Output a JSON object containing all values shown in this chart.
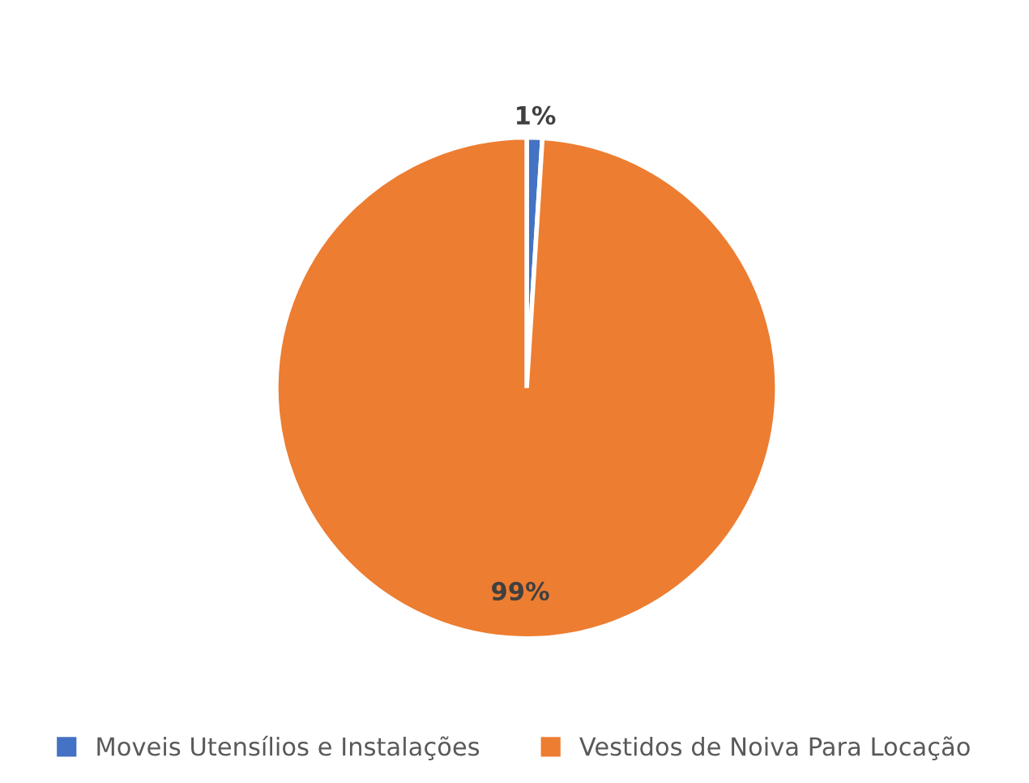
{
  "chart_data": {
    "type": "pie",
    "categories": [
      "Moveis Utensílios e Instalações",
      "Vestidos de Noiva Para Locação"
    ],
    "values": [
      1,
      99
    ],
    "colors": [
      "#4472c4",
      "#ed7d31"
    ],
    "value_labels": [
      "1%",
      "99%"
    ],
    "legend": "bottom"
  }
}
